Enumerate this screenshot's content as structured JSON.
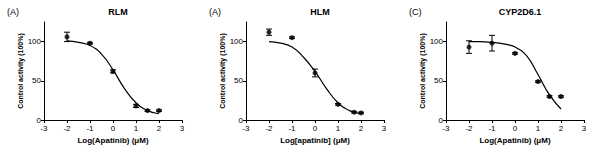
{
  "chart_data": [
    {
      "type": "scatter",
      "panel_label": "(A)",
      "title": "RLM",
      "x_label": "Log(Apatinib) (μM)",
      "y_label": "Control activity (100%)",
      "x": [
        -2,
        -1,
        0,
        1,
        1.5,
        2
      ],
      "values": [
        106,
        98,
        62,
        18,
        12,
        12
      ],
      "errors": [
        6,
        1,
        2,
        2,
        1,
        1
      ],
      "fit": {
        "x": [
          -2,
          -1.5,
          -1,
          -0.5,
          0,
          0.5,
          1,
          1.5,
          2
        ],
        "values": [
          101,
          99,
          95,
          84,
          64,
          40,
          22,
          12,
          8
        ]
      },
      "xlim": [
        -3,
        3
      ],
      "ylim": [
        0,
        125
      ],
      "xticks": [
        -3,
        -2,
        -1,
        0,
        1,
        2,
        3
      ],
      "yticks": [
        0,
        50,
        100
      ],
      "color": "#000000",
      "marker": "circle"
    },
    {
      "type": "scatter",
      "panel_label": "(A)",
      "title": "HLM",
      "x_label": "Log[apatinib] (μM)",
      "y_label": "Control activity (100%)",
      "x": [
        -2,
        -1,
        0,
        1,
        1.7,
        2
      ],
      "values": [
        112,
        105,
        60,
        20,
        10,
        9
      ],
      "errors": [
        4,
        1,
        5,
        1,
        1,
        1
      ],
      "fit": {
        "x": [
          -2,
          -1.5,
          -1,
          -0.5,
          0,
          0.5,
          1,
          1.5,
          2
        ],
        "values": [
          100,
          98,
          93,
          80,
          62,
          40,
          22,
          12,
          8
        ]
      },
      "xlim": [
        -3,
        3
      ],
      "ylim": [
        0,
        125
      ],
      "xticks": [
        -3,
        -2,
        -1,
        0,
        1,
        2,
        3
      ],
      "yticks": [
        0,
        50,
        100
      ],
      "color": "#000000",
      "marker": "circle"
    },
    {
      "type": "scatter",
      "panel_label": "(C)",
      "title": "CYP2D6.1",
      "x_label": "Log(Apatinib) (μM)",
      "y_label": "Control activity (100%)",
      "x": [
        -2,
        -1,
        0,
        1,
        1.5,
        2
      ],
      "values": [
        93,
        98,
        85,
        49,
        30,
        30
      ],
      "errors": [
        8,
        10,
        1,
        1,
        1,
        1
      ],
      "fit": {
        "x": [
          -2,
          -1.5,
          -1,
          -0.5,
          0,
          0.5,
          1,
          1.5,
          2
        ],
        "values": [
          100,
          100,
          99,
          97,
          93,
          82,
          58,
          32,
          14
        ]
      },
      "xlim": [
        -3,
        3
      ],
      "ylim": [
        0,
        125
      ],
      "xticks": [
        -3,
        -2,
        -1,
        0,
        1,
        2,
        3
      ],
      "yticks": [
        0,
        50,
        100
      ],
      "color": "#000000",
      "marker": "circle"
    }
  ]
}
